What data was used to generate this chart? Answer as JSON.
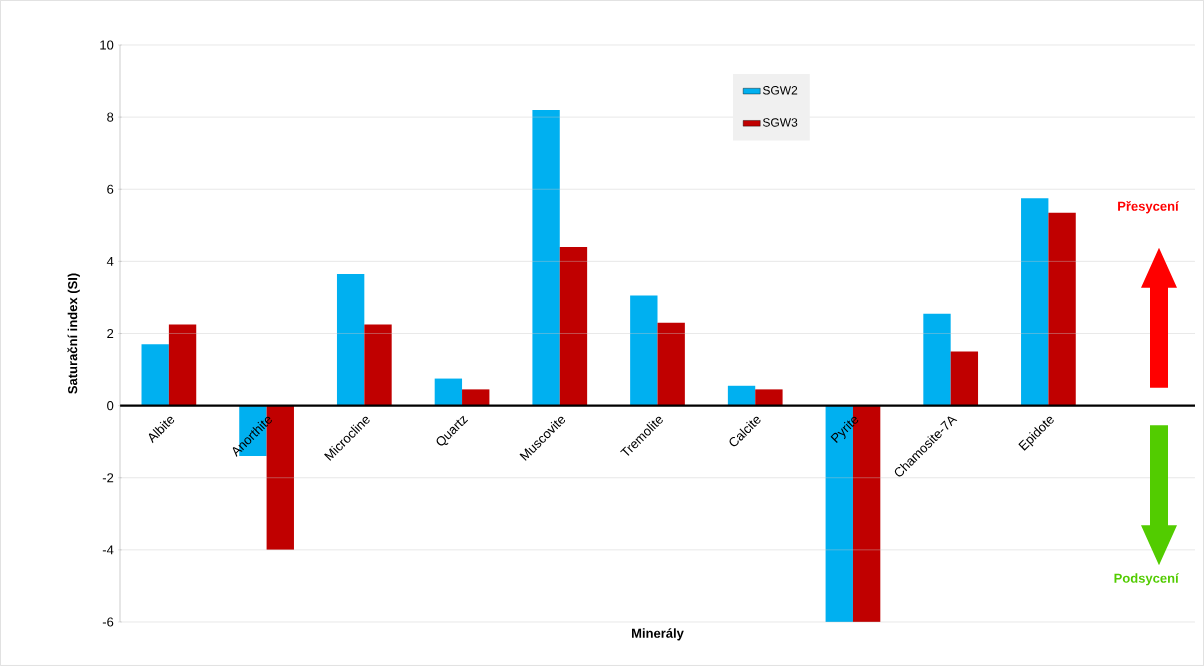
{
  "chart_data": {
    "type": "bar",
    "xlabel": "Minerály",
    "ylabel": "Saturační index (SI)",
    "categories": [
      "Albite",
      "Anorthite",
      "Microcline",
      "Quartz",
      "Muscovite",
      "Tremolite",
      "Calcite",
      "Pyrite",
      "Chamosite-7A",
      "Epidote"
    ],
    "series": [
      {
        "name": "SGW2",
        "color": "#00b0f0",
        "values": [
          1.7,
          -1.4,
          3.65,
          0.75,
          8.2,
          3.05,
          0.55,
          -6.0,
          2.55,
          5.75
        ]
      },
      {
        "name": "SGW3",
        "color": "#c00000",
        "values": [
          2.25,
          -4.0,
          2.25,
          0.45,
          4.4,
          2.3,
          0.45,
          -6.0,
          1.5,
          5.35
        ]
      }
    ],
    "ylim": [
      -6,
      10
    ],
    "yticks": [
      -6,
      -4,
      -2,
      0,
      2,
      4,
      6,
      8,
      10
    ],
    "grid": "y",
    "legend": "top right",
    "annotations": [
      "Přesycení",
      "Podsycení"
    ]
  }
}
